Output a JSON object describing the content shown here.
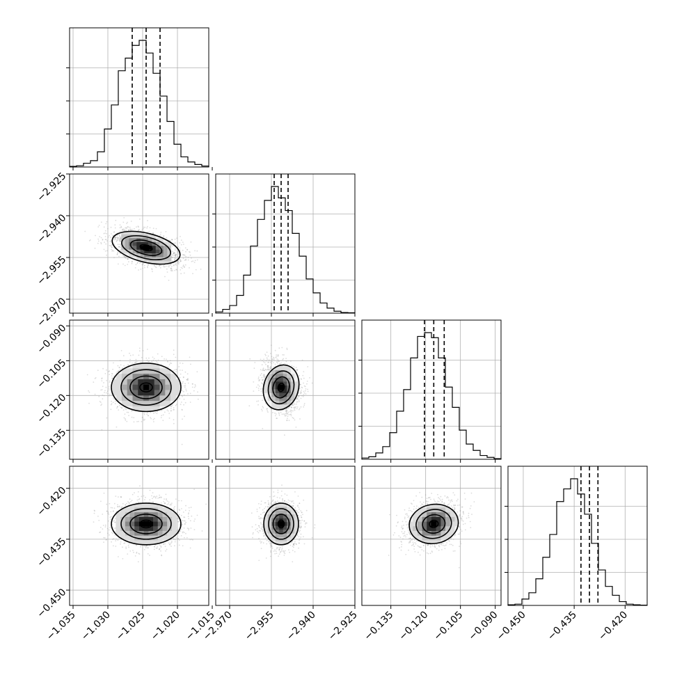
{
  "chart_data": {
    "type": "corner",
    "parameters": [
      {
        "center": -1.0245,
        "q16": -1.0265,
        "q84": -1.0225,
        "lim": [
          -1.0355,
          -1.0155
        ],
        "ticks": [
          -1.035,
          -1.03,
          -1.025,
          -1.02,
          -1.015
        ],
        "tick_labels": [
          "−1.035",
          "−1.030",
          "−1.025",
          "−1.020",
          "−1.015"
        ]
      },
      {
        "center": -2.9515,
        "q16": -2.954,
        "q84": -2.949,
        "lim": [
          -2.975,
          -2.925
        ],
        "ticks": [
          -2.97,
          -2.955,
          -2.94,
          -2.925
        ],
        "tick_labels": [
          "−2.970",
          "−2.955",
          "−2.940",
          "−2.925"
        ]
      },
      {
        "center": -0.1165,
        "q16": -0.1205,
        "q84": -0.112,
        "lim": [
          -0.1475,
          -0.0875
        ],
        "ticks": [
          -0.135,
          -0.12,
          -0.105,
          -0.09
        ],
        "tick_labels": [
          "−0.135",
          "−0.120",
          "−0.105",
          "−0.090"
        ]
      },
      {
        "center": -0.4305,
        "q16": -0.433,
        "q84": -0.428,
        "lim": [
          -0.4545,
          -0.4135
        ],
        "ticks": [
          -0.45,
          -0.435,
          -0.42
        ],
        "tick_labels": [
          "−0.450",
          "−0.435",
          "−0.420"
        ]
      }
    ],
    "y_tick_params": [
      {
        "row": 1,
        "ticks": [
          -2.925,
          -2.94,
          -2.955,
          -2.97
        ],
        "tick_labels": [
          "−2.925",
          "−2.940",
          "−2.955",
          "−2.970"
        ]
      },
      {
        "row": 2,
        "ticks": [
          -0.09,
          -0.105,
          -0.12,
          -0.135
        ],
        "tick_labels": [
          "−0.090",
          "−0.105",
          "−0.120",
          "−0.135"
        ]
      },
      {
        "row": 3,
        "ticks": [
          -0.42,
          -0.435,
          -0.45
        ],
        "tick_labels": [
          "−0.420",
          "−0.435",
          "−0.450"
        ]
      }
    ],
    "histograms": [
      [
        0.005,
        0.01,
        0.03,
        0.05,
        0.12,
        0.3,
        0.49,
        0.76,
        0.86,
        0.96,
        1.0,
        0.9,
        0.74,
        0.56,
        0.36,
        0.18,
        0.08,
        0.04,
        0.02,
        0.008
      ],
      [
        0.01,
        0.03,
        0.06,
        0.14,
        0.3,
        0.53,
        0.74,
        0.89,
        1.0,
        0.91,
        0.81,
        0.63,
        0.45,
        0.27,
        0.16,
        0.08,
        0.04,
        0.015,
        0.005,
        0.003
      ],
      [
        0.01,
        0.02,
        0.05,
        0.1,
        0.21,
        0.38,
        0.55,
        0.8,
        0.97,
        1.0,
        0.96,
        0.8,
        0.57,
        0.41,
        0.23,
        0.12,
        0.07,
        0.03,
        0.015,
        0.005
      ],
      [
        0.005,
        0.01,
        0.05,
        0.1,
        0.21,
        0.38,
        0.56,
        0.82,
        0.92,
        1.0,
        0.88,
        0.72,
        0.49,
        0.28,
        0.15,
        0.08,
        0.03,
        0.01,
        0.005,
        0.002
      ]
    ],
    "correlations": {
      "1-0": -0.5,
      "2-0": 0.0,
      "2-1": -0.2,
      "3-0": 0.0,
      "3-1": 0.0,
      "3-2": 0.2
    },
    "quantile_lines": "dashed",
    "grid": true,
    "contour_levels": 4,
    "colors": {
      "line": "#000000",
      "grid": "#b0b0b0",
      "scatter": "#9a9a9a",
      "background": "#ffffff"
    }
  }
}
